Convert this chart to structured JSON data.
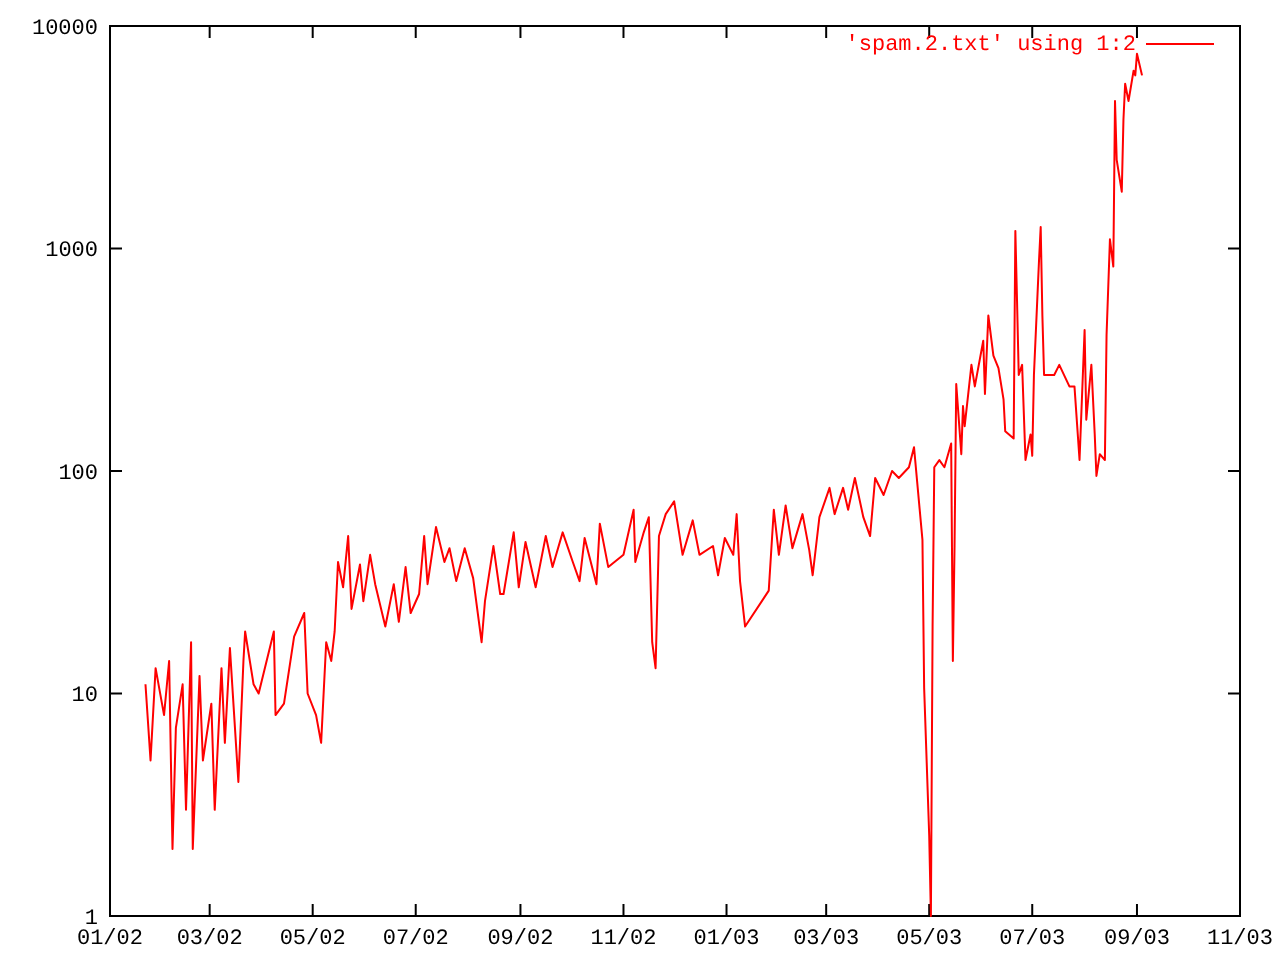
{
  "chart_data": {
    "type": "line",
    "log": "y",
    "legend": "top right",
    "grid": false,
    "xlim": [
      "2002-01-01",
      "2003-11-01"
    ],
    "xticks": [
      {
        "value": "2002-01-01",
        "label": "01/02"
      },
      {
        "value": "2002-03-01",
        "label": "03/02"
      },
      {
        "value": "2002-05-01",
        "label": "05/02"
      },
      {
        "value": "2002-07-01",
        "label": "07/02"
      },
      {
        "value": "2002-09-01",
        "label": "09/02"
      },
      {
        "value": "2002-11-01",
        "label": "11/02"
      },
      {
        "value": "2003-01-01",
        "label": "01/03"
      },
      {
        "value": "2003-03-01",
        "label": "03/03"
      },
      {
        "value": "2003-05-01",
        "label": "05/03"
      },
      {
        "value": "2003-07-01",
        "label": "07/03"
      },
      {
        "value": "2003-09-01",
        "label": "09/03"
      },
      {
        "value": "2003-11-01",
        "label": "11/03"
      }
    ],
    "ylim": [
      1,
      10000
    ],
    "yticks": [
      1,
      10,
      100,
      1000,
      10000
    ],
    "series": [
      {
        "name": "'spam.2.txt' using 1:2",
        "color": "#ff0000",
        "x": [
          "2002-01-22",
          "2002-01-25",
          "2002-01-28",
          "2002-02-02",
          "2002-02-05",
          "2002-02-07",
          "2002-02-09",
          "2002-02-13",
          "2002-02-15",
          "2002-02-18",
          "2002-02-19",
          "2002-02-23",
          "2002-02-25",
          "2002-03-02",
          "2002-03-04",
          "2002-03-08",
          "2002-03-10",
          "2002-03-13",
          "2002-03-18",
          "2002-03-21",
          "2002-03-22",
          "2002-03-27",
          "2002-03-30",
          "2002-04-08",
          "2002-04-09",
          "2002-04-14",
          "2002-04-20",
          "2002-04-26",
          "2002-04-28",
          "2002-05-03",
          "2002-05-06",
          "2002-05-09",
          "2002-05-12",
          "2002-05-14",
          "2002-05-16",
          "2002-05-19",
          "2002-05-22",
          "2002-05-24",
          "2002-05-29",
          "2002-05-31",
          "2002-06-04",
          "2002-06-07",
          "2002-06-13",
          "2002-06-18",
          "2002-06-21",
          "2002-06-25",
          "2002-06-28",
          "2002-07-03",
          "2002-07-06",
          "2002-07-08",
          "2002-07-13",
          "2002-07-18",
          "2002-07-21",
          "2002-07-25",
          "2002-07-30",
          "2002-08-04",
          "2002-08-09",
          "2002-08-11",
          "2002-08-16",
          "2002-08-20",
          "2002-08-22",
          "2002-08-28",
          "2002-08-31",
          "2002-09-04",
          "2002-09-10",
          "2002-09-16",
          "2002-09-20",
          "2002-09-26",
          "2002-10-02",
          "2002-10-06",
          "2002-10-09",
          "2002-10-16",
          "2002-10-18",
          "2002-10-23",
          "2002-11-01",
          "2002-11-07",
          "2002-11-08",
          "2002-11-13",
          "2002-11-16",
          "2002-11-18",
          "2002-11-20",
          "2002-11-22",
          "2002-11-26",
          "2002-12-01",
          "2002-12-06",
          "2002-12-12",
          "2002-12-16",
          "2002-12-24",
          "2002-12-27",
          "2002-12-31",
          "2003-01-05",
          "2003-01-07",
          "2003-01-09",
          "2003-01-12",
          "2003-01-26",
          "2003-01-29",
          "2003-02-01",
          "2003-02-05",
          "2003-02-09",
          "2003-02-15",
          "2003-02-19",
          "2003-02-21",
          "2003-02-25",
          "2003-03-03",
          "2003-03-06",
          "2003-03-11",
          "2003-03-14",
          "2003-03-18",
          "2003-03-23",
          "2003-03-27",
          "2003-03-30",
          "2003-04-04",
          "2003-04-09",
          "2003-04-13",
          "2003-04-19",
          "2003-04-22",
          "2003-04-27",
          "2003-04-28",
          "2003-05-01",
          "2003-05-02",
          "2003-05-03",
          "2003-05-04",
          "2003-05-07",
          "2003-05-10",
          "2003-05-14",
          "2003-05-15",
          "2003-05-16",
          "2003-05-17",
          "2003-05-20",
          "2003-05-21",
          "2003-05-22",
          "2003-05-26",
          "2003-05-28",
          "2003-06-02",
          "2003-06-03",
          "2003-06-05",
          "2003-06-08",
          "2003-06-11",
          "2003-06-14",
          "2003-06-15",
          "2003-06-20",
          "2003-06-21",
          "2003-06-22",
          "2003-06-23",
          "2003-06-25",
          "2003-06-27",
          "2003-06-30",
          "2003-07-01",
          "2003-07-02",
          "2003-07-05",
          "2003-07-06",
          "2003-07-07",
          "2003-07-08",
          "2003-07-14",
          "2003-07-17",
          "2003-07-23",
          "2003-07-26",
          "2003-07-29",
          "2003-08-01",
          "2003-08-02",
          "2003-08-05",
          "2003-08-07",
          "2003-08-08",
          "2003-08-10",
          "2003-08-13",
          "2003-08-14",
          "2003-08-16",
          "2003-08-18",
          "2003-08-19",
          "2003-08-20",
          "2003-08-23",
          "2003-08-24",
          "2003-08-25",
          "2003-08-27",
          "2003-08-30",
          "2003-08-31",
          "2003-09-01",
          "2003-09-04"
        ],
        "values": [
          11,
          5,
          13,
          8,
          14,
          2,
          7,
          11,
          3,
          17,
          2,
          12,
          5,
          9,
          3,
          13,
          6,
          16,
          4,
          14,
          19,
          11,
          10,
          19,
          8,
          9,
          18,
          23,
          10,
          8,
          6,
          17,
          14,
          19,
          39,
          30,
          51,
          24,
          38,
          26,
          42,
          31,
          20,
          31,
          21,
          37,
          23,
          28,
          51,
          31,
          56,
          39,
          45,
          32,
          45,
          33,
          17,
          26,
          46,
          28,
          28,
          53,
          30,
          48,
          30,
          51,
          37,
          53,
          39,
          32,
          50,
          31,
          58,
          37,
          42,
          67,
          39,
          53,
          62,
          17,
          13,
          51,
          64,
          73,
          42,
          60,
          42,
          46,
          34,
          50,
          42,
          64,
          32,
          20,
          29,
          67,
          42,
          70,
          45,
          64,
          44,
          34,
          62,
          84,
          64,
          84,
          67,
          93,
          62,
          51,
          93,
          78,
          100,
          93,
          104,
          128,
          49,
          10.6,
          2.3,
          1,
          20,
          104,
          112,
          104,
          133,
          14,
          46,
          246,
          119,
          196,
          159,
          300,
          240,
          385,
          222,
          500,
          330,
          290,
          210,
          151,
          140,
          1200,
          580,
          270,
          300,
          112,
          146,
          117,
          270,
          880,
          1250,
          500,
          270,
          270,
          300,
          240,
          240,
          112,
          430,
          170,
          300,
          146,
          95,
          119,
          112,
          410,
          1100,
          830,
          4600,
          2500,
          1800,
          3800,
          5500,
          4600,
          6300,
          6000,
          7500,
          6000
        ]
      }
    ]
  }
}
